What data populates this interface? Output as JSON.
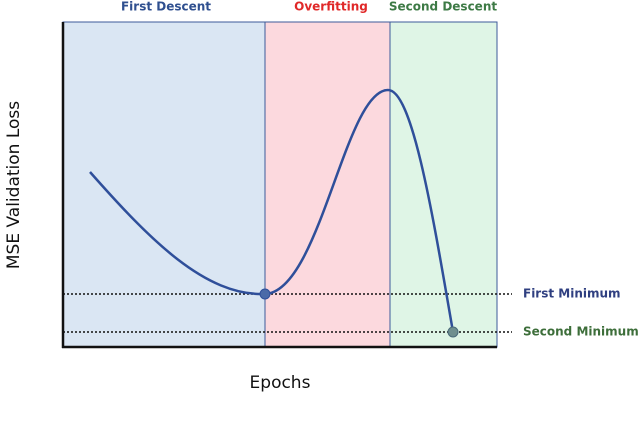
{
  "regions": [
    {
      "label": "First Descent"
    },
    {
      "label": "Overfitting"
    },
    {
      "label": "Second Descent"
    }
  ],
  "axes": {
    "x_label": "Epochs",
    "y_label": "MSE Validation Loss"
  },
  "markers": [
    {
      "label": "First Minimum"
    },
    {
      "label": "Second Minimum"
    }
  ]
}
